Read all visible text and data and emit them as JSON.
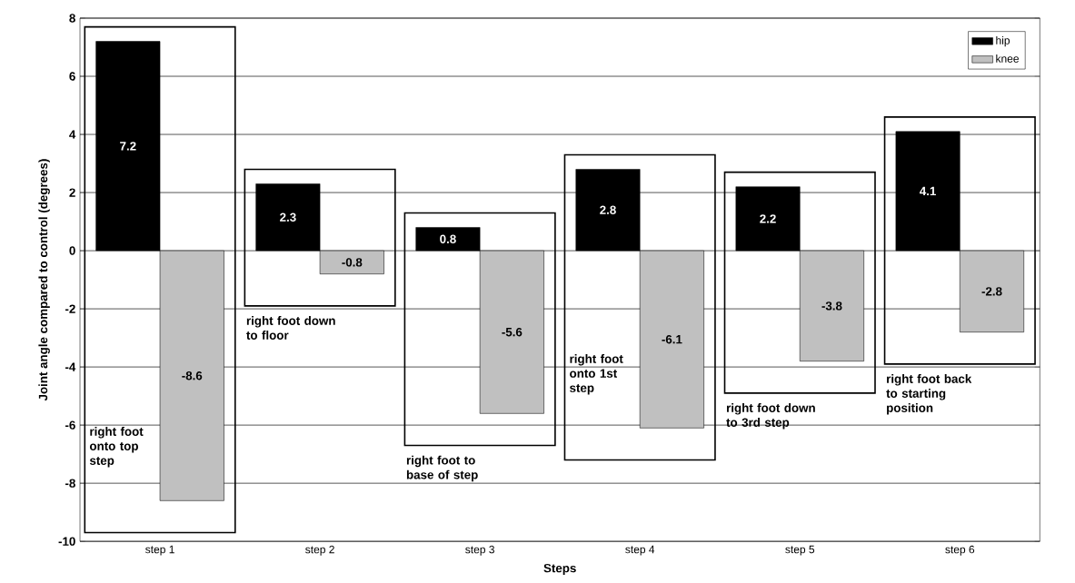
{
  "chart_data": {
    "type": "bar",
    "xlabel": "Steps",
    "ylabel": "Joint angle compared to control (degrees)",
    "categories": [
      "step 1",
      "step 2",
      "step 3",
      "step 4",
      "step 5",
      "step 6"
    ],
    "series": [
      {
        "name": "hip",
        "color": "#000000",
        "values": [
          7.2,
          2.3,
          0.8,
          2.8,
          2.2,
          4.1
        ]
      },
      {
        "name": "knee",
        "color": "#c0c0c0",
        "values": [
          -8.6,
          -0.8,
          -5.6,
          -6.1,
          -3.8,
          -2.8
        ]
      }
    ],
    "ylim": [
      -10,
      8
    ],
    "yticks": [
      -10,
      -8,
      -6,
      -4,
      -2,
      0,
      2,
      4,
      6,
      8
    ],
    "grid": "y",
    "legend": "top right",
    "data_labels": true,
    "annotations": [
      "right foot onto top step",
      "right foot down to floor",
      "right foot to base of step",
      "right foot onto 1st step",
      "right foot down to 3rd step",
      "right foot back to starting position"
    ]
  }
}
